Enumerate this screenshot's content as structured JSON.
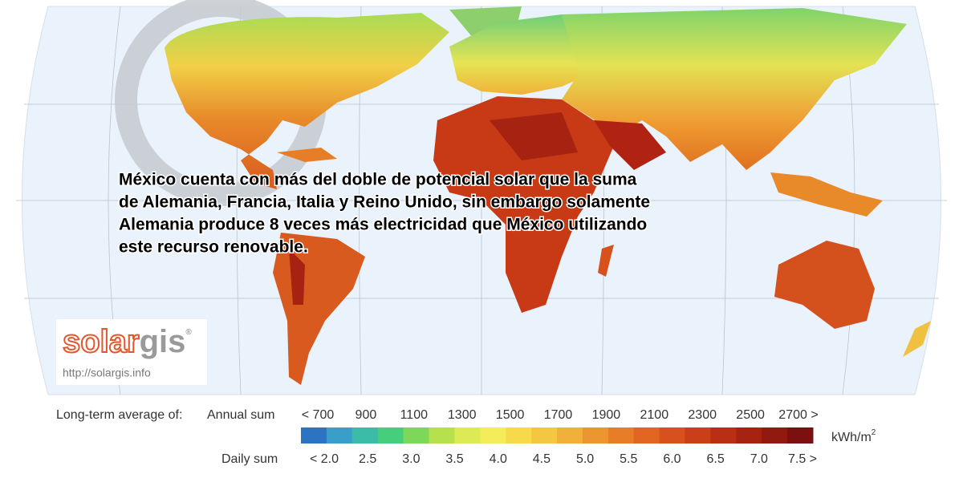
{
  "caption": {
    "lines": [
      "México cuenta con más del doble de potencial solar que la suma",
      "de Alemania, Francia, Italia y Reino Unido, sin embargo solamente",
      "Alemania produce 8 veces más electricidad que México utilizando",
      "este recurso renovable."
    ]
  },
  "logo": {
    "brand_a": "solar",
    "brand_b": "gis",
    "mark": "®",
    "url": "http://solargis.info"
  },
  "legend": {
    "label": "Long-term average of:",
    "annual": {
      "label": "Annual sum",
      "ticks": [
        "< 700",
        "900",
        "1100",
        "1300",
        "1500",
        "1700",
        "1900",
        "2100",
        "2300",
        "2500",
        "2700 >"
      ]
    },
    "daily": {
      "label": "Daily sum",
      "ticks": [
        "< 2.0",
        "2.5",
        "3.0",
        "3.5",
        "4.0",
        "4.5",
        "5.0",
        "5.5",
        "6.0",
        "6.5",
        "7.0",
        "7.5 >"
      ]
    },
    "unit": "kWh/m",
    "unit_sup": "2",
    "colors": [
      "#2c74c2",
      "#3a9fc8",
      "#3bbca9",
      "#45cf7c",
      "#7dd758",
      "#b6e04c",
      "#dcea55",
      "#f4ec5a",
      "#f6da4b",
      "#f4c742",
      "#f1b03a",
      "#ed9630",
      "#e87d28",
      "#e06622",
      "#d6511c",
      "#c93f18",
      "#b82f14",
      "#a62312",
      "#921910",
      "#7c1010"
    ]
  }
}
